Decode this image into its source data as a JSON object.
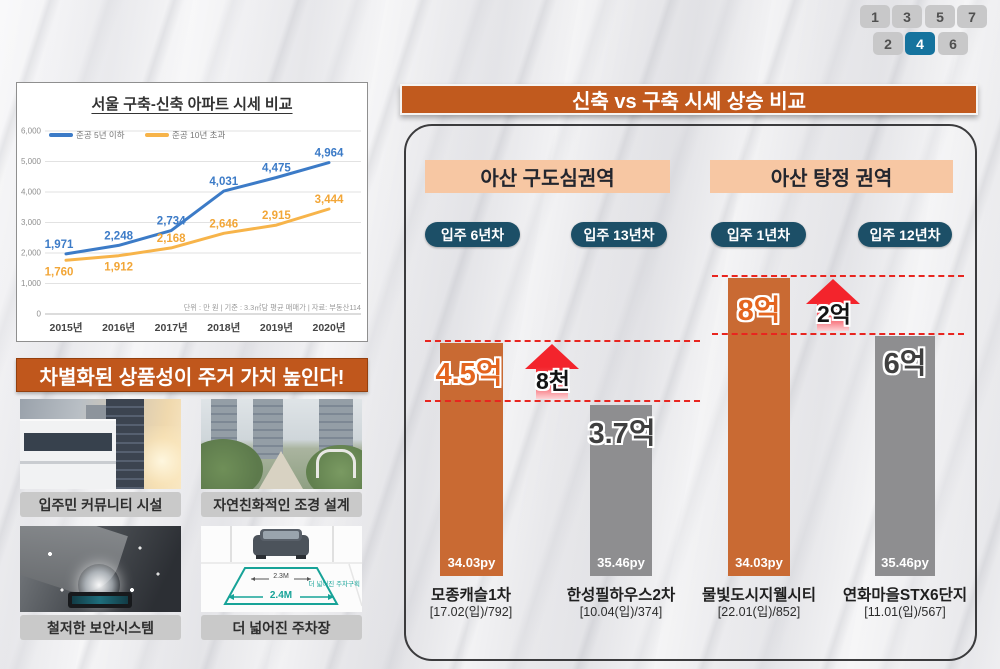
{
  "pagination": {
    "row1": [
      "1",
      "3",
      "5",
      "7"
    ],
    "row2": [
      "2",
      "4",
      "6"
    ],
    "active": "4"
  },
  "colors": {
    "header_orange": "#C0571C",
    "title_bar_orange": "#C15A1E",
    "bar_new_orange": "#C96A33",
    "bar_old_gray": "#8E8E90",
    "pill_navy": "#1C4F67",
    "region_peach": "#F7C7A3",
    "dashed_red": "#E8251F",
    "arrow_red": "#F3242C",
    "line_blue": "#3C7BC7",
    "line_yellow": "#F7B44A",
    "active_page_blue": "#15739E"
  },
  "chart_data": [
    {
      "type": "line",
      "title": "서울 구축-신축 아파트 시세 비교",
      "x": [
        "2015년",
        "2016년",
        "2017년",
        "2018년",
        "2019년",
        "2020년"
      ],
      "series": [
        {
          "name": "준공 5년 이하",
          "color": "#3C7BC7",
          "label_color": "#3C7BC7",
          "values": [
            1971,
            2248,
            2734,
            4031,
            4475,
            4964
          ]
        },
        {
          "name": "준공 10년 초과",
          "color": "#F7B44A",
          "label_color": "#F2A637",
          "values": [
            1760,
            1912,
            2168,
            2646,
            2915,
            3444
          ]
        }
      ],
      "ylim": [
        0,
        6000
      ],
      "yticks": [
        0,
        1000,
        2000,
        3000,
        4000,
        5000,
        6000
      ],
      "grid": true,
      "legend_position": "top-left",
      "note": "단위 : 만 원 | 기준 : 3.3㎡당 평균 매매가 | 자료: 부동산114"
    },
    {
      "type": "bar",
      "title": "신축 vs 구축 시세 상승 비교",
      "groups": [
        {
          "region": "아산 구도심권역",
          "gap_label": "8천",
          "bars": [
            {
              "label": "모종캐슬1차",
              "info": "[17.02(입)/792]",
              "pill": "입주 6년차",
              "value": 4.5,
              "value_label": "4.5억",
              "size": "34.03py",
              "color": "#C96A33"
            },
            {
              "label": "한성필하우스2차",
              "info": "[10.04(입)/374]",
              "pill": "입주 13년차",
              "value": 3.7,
              "value_label": "3.7억",
              "size": "35.46py",
              "color": "#8E8E90"
            }
          ]
        },
        {
          "region": "아산 탕정 권역",
          "gap_label": "2억",
          "bars": [
            {
              "label": "물빛도시지웰시티",
              "info": "[22.01(입)/852]",
              "pill": "입주 1년차",
              "value": 8,
              "value_label": "8억",
              "size": "34.03py",
              "color": "#C96A33"
            },
            {
              "label": "연화마을STX6단지",
              "info": "[11.01(입)/567]",
              "pill": "입주 12년차",
              "value": 6,
              "value_label": "6억",
              "size": "35.46py",
              "color": "#8E8E90"
            }
          ]
        }
      ]
    }
  ],
  "left_section": {
    "header": "차별화된 상품성이 주거 가치 높인다!",
    "cards": [
      {
        "caption": "입주민 커뮤니티 시설"
      },
      {
        "caption": "자연친화적인 조경 설계"
      },
      {
        "caption": "철저한 보안시스템"
      },
      {
        "caption": "더 넓어진 주차장",
        "labels": {
          "narrow": "2.3M",
          "wide": "2.4M",
          "note": "더 넓어진 주차구획"
        }
      }
    ]
  }
}
